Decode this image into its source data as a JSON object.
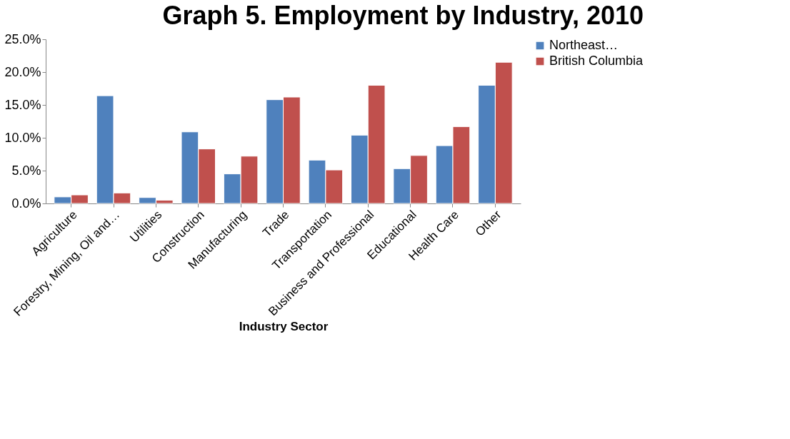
{
  "chart_data": {
    "type": "bar",
    "title": "Graph 5. Employment by Industry, 2010",
    "xlabel": "Industry Sector",
    "categories": [
      "Agriculture",
      "Forestry, Mining, Oil and…",
      "Utilities",
      "Construction",
      "Manufacturing",
      "Trade",
      "Transportation",
      "Business and Professional",
      "Educational",
      "Health Care",
      "Other"
    ],
    "series": [
      {
        "name": "Northeast…",
        "color": "#4f81bd",
        "values": [
          1.0,
          16.4,
          0.9,
          10.9,
          4.5,
          15.8,
          6.6,
          10.4,
          5.3,
          8.8,
          18.0
        ]
      },
      {
        "name": "British Columbia",
        "color": "#c0504d",
        "values": [
          1.3,
          1.6,
          0.5,
          8.3,
          7.2,
          16.2,
          5.1,
          18.0,
          7.3,
          11.7,
          21.5
        ]
      }
    ],
    "ylim": [
      0,
      25
    ],
    "yticks": [
      {
        "value": 0,
        "label": "0.0%"
      },
      {
        "value": 5,
        "label": "5.0%"
      },
      {
        "value": 10,
        "label": "10.0%"
      },
      {
        "value": 15,
        "label": "15.0%"
      },
      {
        "value": 20,
        "label": "20.0%"
      },
      {
        "value": 25,
        "label": "25.0%"
      }
    ],
    "grid": false,
    "legend": "right"
  }
}
